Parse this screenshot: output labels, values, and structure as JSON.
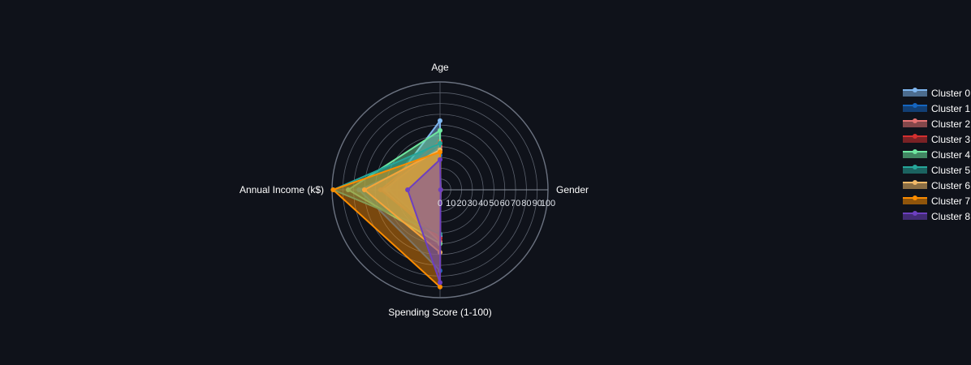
{
  "chart_data": {
    "type": "radar",
    "axes": [
      "Gender",
      "Age",
      "Annual Income (k$)",
      "Spending Score (1-100)"
    ],
    "radial_range": [
      0,
      100
    ],
    "radial_ticks": [
      0,
      10,
      20,
      30,
      40,
      50,
      60,
      70,
      80,
      90,
      100
    ],
    "radial_tick_labels": [
      "0",
      "10",
      "20",
      "30",
      "40",
      "50",
      "60",
      "70",
      "80",
      "90",
      "100"
    ],
    "grid": true,
    "legend_position": "right",
    "series": [
      {
        "name": "Cluster 0",
        "color": "#7fb6ef",
        "values": [
          0.5,
          64,
          48,
          43
        ]
      },
      {
        "name": "Cluster 1",
        "color": "#1565c0",
        "values": [
          0.5,
          32,
          75,
          75
        ]
      },
      {
        "name": "Cluster 2",
        "color": "#e57373",
        "values": [
          0.5,
          40,
          52,
          48
        ]
      },
      {
        "name": "Cluster 3",
        "color": "#d32f2f",
        "values": [
          0.5,
          45,
          55,
          45
        ]
      },
      {
        "name": "Cluster 4",
        "color": "#6ee7a0",
        "values": [
          0.5,
          55,
          85,
          50
        ]
      },
      {
        "name": "Cluster 5",
        "color": "#26a69a",
        "values": [
          0.5,
          43,
          99,
          41
        ]
      },
      {
        "name": "Cluster 6",
        "color": "#f2b968",
        "values": [
          0.5,
          37,
          70,
          58
        ]
      },
      {
        "name": "Cluster 7",
        "color": "#fb8c00",
        "values": [
          0.5,
          35,
          99,
          90
        ]
      },
      {
        "name": "Cluster 8",
        "color": "#6d3fc0",
        "values": [
          0.5,
          28,
          30,
          86
        ]
      }
    ]
  }
}
